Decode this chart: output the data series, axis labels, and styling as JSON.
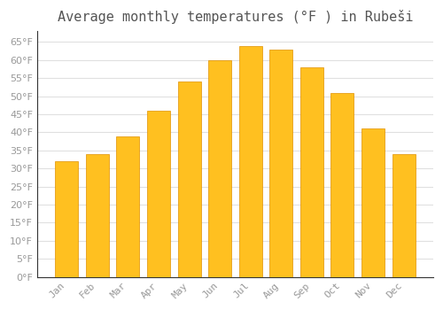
{
  "title": "Average monthly temperatures (°F ) in Rubeši",
  "months": [
    "Jan",
    "Feb",
    "Mar",
    "Apr",
    "May",
    "Jun",
    "Jul",
    "Aug",
    "Sep",
    "Oct",
    "Nov",
    "Dec"
  ],
  "values": [
    32,
    34,
    39,
    46,
    54,
    60,
    64,
    63,
    58,
    51,
    41,
    34
  ],
  "bar_color_top": "#FFC020",
  "bar_color_bottom": "#FFB000",
  "bar_edge_color": "#E09000",
  "background_color": "#ffffff",
  "grid_color": "#e0e0e0",
  "ylim": [
    0,
    68
  ],
  "yticks": [
    0,
    5,
    10,
    15,
    20,
    25,
    30,
    35,
    40,
    45,
    50,
    55,
    60,
    65
  ],
  "title_fontsize": 11,
  "tick_fontsize": 8,
  "title_color": "#555555",
  "tick_color": "#999999",
  "spine_color": "#333333",
  "bar_width": 0.75
}
